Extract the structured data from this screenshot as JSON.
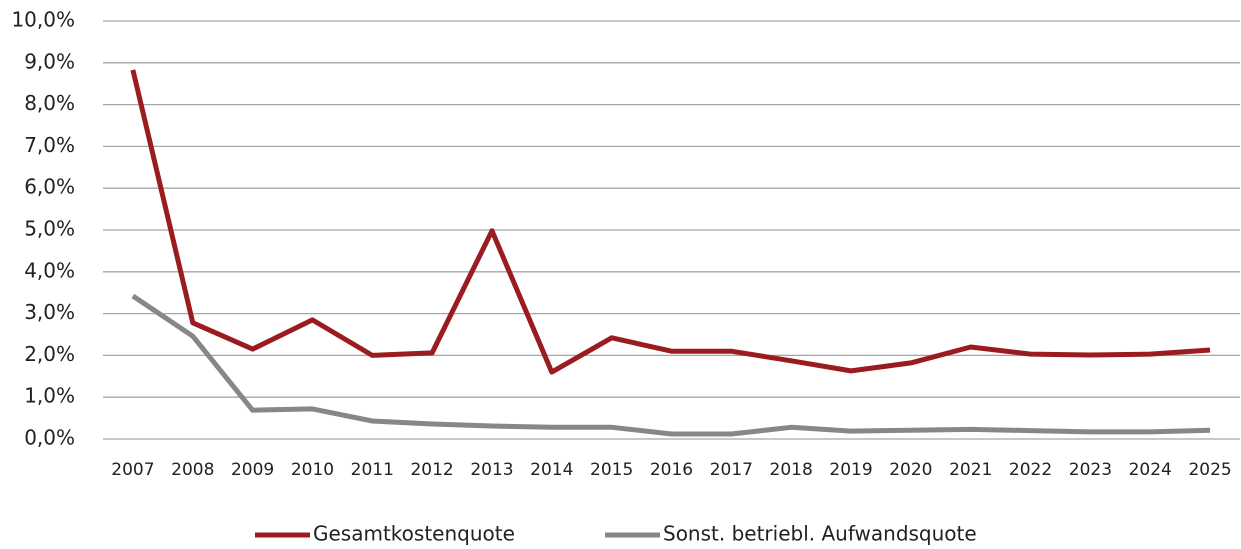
{
  "chart_data": {
    "type": "line",
    "categories": [
      "2007",
      "2008",
      "2009",
      "2010",
      "2011",
      "2012",
      "2013",
      "2014",
      "2015",
      "2016",
      "2017",
      "2018",
      "2019",
      "2020",
      "2021",
      "2022",
      "2023",
      "2024",
      "2025"
    ],
    "series": [
      {
        "name": "Gesamtkostenquote",
        "color": "#9b1c1f",
        "values": [
          8.83,
          2.78,
          2.15,
          2.85,
          2.0,
          2.06,
          4.98,
          1.6,
          2.42,
          2.1,
          2.1,
          1.87,
          1.63,
          1.82,
          2.2,
          2.03,
          2.01,
          2.03,
          2.13
        ]
      },
      {
        "name": "Sonst. betriebl. Aufwandsquote",
        "color": "#878787",
        "values": [
          3.42,
          2.46,
          0.69,
          0.72,
          0.43,
          0.36,
          0.31,
          0.28,
          0.28,
          0.12,
          0.12,
          0.28,
          0.19,
          0.21,
          0.23,
          0.2,
          0.17,
          0.17,
          0.21
        ]
      }
    ],
    "ylim": [
      0,
      10
    ],
    "yticks": [
      {
        "value": 0,
        "label": "0,0%"
      },
      {
        "value": 1,
        "label": "1,0%"
      },
      {
        "value": 2,
        "label": "2,0%"
      },
      {
        "value": 3,
        "label": "3,0%"
      },
      {
        "value": 4,
        "label": "4,0%"
      },
      {
        "value": 5,
        "label": "5,0%"
      },
      {
        "value": 6,
        "label": "6,0%"
      },
      {
        "value": 7,
        "label": "7,0%"
      },
      {
        "value": 8,
        "label": "8,0%"
      },
      {
        "value": 9,
        "label": "9,0%"
      },
      {
        "value": 10,
        "label": "10,0%"
      }
    ],
    "grid": true,
    "legend": "bottom"
  }
}
